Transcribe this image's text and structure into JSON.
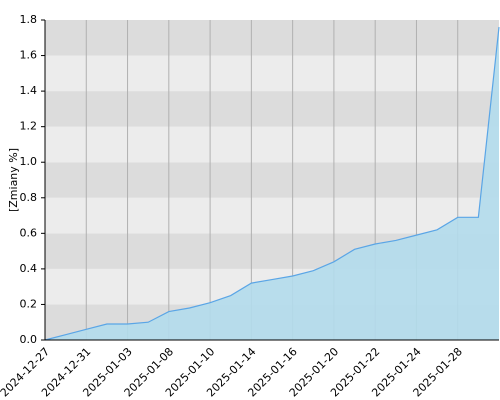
{
  "chart_data": {
    "type": "area",
    "y_label": "[Zmiany %]",
    "categories": [
      "2024-12-27",
      null,
      "2024-12-31",
      null,
      "2025-01-03",
      null,
      "2025-01-08",
      null,
      "2025-01-10",
      null,
      "2025-01-14",
      null,
      "2025-01-16",
      null,
      "2025-01-20",
      null,
      "2025-01-22",
      null,
      "2025-01-24",
      null,
      "2025-01-28",
      null,
      null
    ],
    "values": [
      0,
      0.03,
      0.06,
      0.09,
      0.09,
      0.1,
      0.16,
      0.18,
      0.21,
      0.25,
      0.32,
      0.34,
      0.36,
      0.39,
      0.44,
      0.51,
      0.54,
      0.56,
      0.59,
      0.62,
      0.69,
      0.69,
      1.76
    ],
    "color": "#5aa5e6",
    "fill": "#b3dcec",
    "ylim": [
      0,
      1.8
    ],
    "yticks": [
      {
        "value": 0,
        "label": "0.0"
      },
      {
        "value": 0.2,
        "label": "0.2"
      },
      {
        "value": 0.4,
        "label": "0.4"
      },
      {
        "value": 0.6,
        "label": "0.6"
      },
      {
        "value": 0.8,
        "label": "0.8"
      },
      {
        "value": 1.0,
        "label": "1.0"
      },
      {
        "value": 1.2,
        "label": "1.2"
      },
      {
        "value": 1.4,
        "label": "1.4"
      },
      {
        "value": 1.6,
        "label": "1.6"
      },
      {
        "value": 1.8,
        "label": "1.8"
      }
    ],
    "grid": true,
    "band_colors": [
      "#dcdcdc",
      "#ececec"
    ]
  }
}
